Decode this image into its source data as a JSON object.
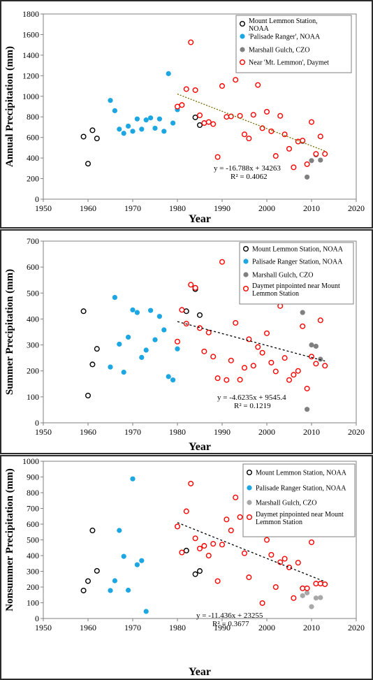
{
  "colors": {
    "mount_lemmon": "#000000",
    "palisade": "#1ca6e2",
    "marshall_dark": "#808080",
    "marshall_light": "#a8a8a8",
    "daymet": "#ff0000",
    "trend": "#000000",
    "trend_annual": "#7a6a00"
  },
  "chart_data": [
    {
      "type": "scatter",
      "title": "",
      "xlabel": "Year",
      "ylabel": "Annual Precipitation (mm)",
      "xlim": [
        1950,
        2020
      ],
      "ylim": [
        0,
        1800
      ],
      "xticks": [
        "1950",
        "1960",
        "1970",
        "1980",
        "1990",
        "2000",
        "2010",
        "2020"
      ],
      "yticks": [
        "0",
        "200",
        "400",
        "600",
        "800",
        "1000",
        "1200",
        "1400",
        "1600",
        "1800"
      ],
      "legend_position": "top-right",
      "equation": "y = -16.788x + 34263",
      "r2": "R² = 0.4062",
      "trend": {
        "x": [
          1980,
          2013
        ],
        "y": [
          1022,
          468
        ]
      },
      "series": [
        {
          "name": "Mount Lemmon Station, NOAA",
          "marker": "open",
          "color": "#000000",
          "x": [
            1959,
            1960,
            1961,
            1962,
            1984,
            1985
          ],
          "y": [
            608,
            345,
            670,
            590,
            795,
            720
          ]
        },
        {
          "name": "'Palisade Ranger', NOAA",
          "marker": "filled",
          "color": "#1ca6e2",
          "x": [
            1965,
            1966,
            1967,
            1968,
            1969,
            1970,
            1971,
            1972,
            1973,
            1974,
            1975,
            1976,
            1977,
            1978,
            1979,
            1980
          ],
          "y": [
            960,
            860,
            680,
            640,
            710,
            660,
            780,
            680,
            770,
            790,
            690,
            780,
            660,
            1220,
            740,
            870
          ]
        },
        {
          "name": "Marshall Gulch, CZO",
          "marker": "filled",
          "color": "#808080",
          "x": [
            2008,
            2009,
            2010,
            2011,
            2012
          ],
          "y": [
            560,
            215,
            375,
            430,
            380
          ]
        },
        {
          "name": "Near 'Mt. Lemmon', Daymet",
          "marker": "open",
          "color": "#ff0000",
          "x": [
            1980,
            1981,
            1982,
            1983,
            1984,
            1985,
            1986,
            1987,
            1988,
            1989,
            1990,
            1991,
            1992,
            1993,
            1994,
            1995,
            1996,
            1997,
            1998,
            1999,
            2000,
            2001,
            2002,
            2003,
            2004,
            2005,
            2006,
            2007,
            2008,
            2009,
            2010,
            2011,
            2012,
            2013
          ],
          "y": [
            900,
            915,
            1070,
            1525,
            1060,
            815,
            740,
            750,
            730,
            410,
            1100,
            800,
            805,
            1160,
            810,
            630,
            590,
            820,
            1110,
            690,
            850,
            660,
            420,
            810,
            630,
            490,
            310,
            560,
            570,
            340,
            750,
            440,
            610,
            440
          ]
        }
      ]
    },
    {
      "type": "scatter",
      "title": "",
      "xlabel": "Year",
      "ylabel": "Summer Precipitation (mm)",
      "xlim": [
        1950,
        2020
      ],
      "ylim": [
        0,
        700
      ],
      "xticks": [
        "1950",
        "1960",
        "1970",
        "1980",
        "1990",
        "2000",
        "2010",
        "2020"
      ],
      "yticks": [
        "0",
        "100",
        "200",
        "300",
        "400",
        "500",
        "600",
        "700"
      ],
      "legend_position": "top-right",
      "equation": "y = -4.6235x + 9545.4",
      "r2": "R² = 0.1219",
      "trend": {
        "x": [
          1980,
          2013
        ],
        "y": [
          390,
          238
        ]
      },
      "series": [
        {
          "name": "Mount Lemmon Station, NOAA",
          "marker": "open",
          "color": "#000000",
          "x": [
            1959,
            1960,
            1961,
            1962,
            1982,
            1984,
            1984,
            1985
          ],
          "y": [
            430,
            105,
            225,
            285,
            430,
            520,
            515,
            415
          ]
        },
        {
          "name": "Palisade Ranger Station, NOAA",
          "marker": "filled",
          "color": "#1ca6e2",
          "x": [
            1965,
            1966,
            1967,
            1968,
            1969,
            1970,
            1971,
            1972,
            1973,
            1974,
            1975,
            1976,
            1977,
            1978,
            1979,
            1980
          ],
          "y": [
            215,
            483,
            303,
            195,
            330,
            435,
            425,
            252,
            280,
            433,
            320,
            410,
            358,
            178,
            165,
            285
          ]
        },
        {
          "name": "Marshall Gulch, CZO",
          "marker": "filled",
          "color": "#808080",
          "x": [
            2008,
            2009,
            2010,
            2011,
            2012
          ],
          "y": [
            425,
            52,
            300,
            295,
            245
          ]
        },
        {
          "name": "Daymet pinpointed near Mount Lemmon Station",
          "marker": "open",
          "color": "#ff0000",
          "x": [
            1980,
            1981,
            1982,
            1983,
            1984,
            1985,
            1986,
            1987,
            1988,
            1989,
            1990,
            1991,
            1992,
            1993,
            1994,
            1995,
            1996,
            1997,
            1998,
            1999,
            2000,
            2001,
            2002,
            2003,
            2004,
            2005,
            2006,
            2007,
            2008,
            2009,
            2010,
            2011,
            2012,
            2013
          ],
          "y": [
            313,
            435,
            382,
            532,
            520,
            365,
            275,
            348,
            255,
            172,
            620,
            165,
            240,
            385,
            166,
            212,
            322,
            220,
            292,
            270,
            345,
            232,
            198,
            450,
            250,
            165,
            185,
            200,
            372,
            132,
            255,
            228,
            395,
            220
          ]
        }
      ]
    },
    {
      "type": "scatter",
      "title": "",
      "xlabel": "Year",
      "ylabel": "Nonsummer Precipitation (mm)",
      "xlim": [
        1950,
        2020
      ],
      "ylim": [
        0,
        1000
      ],
      "xticks": [
        "1950",
        "1960",
        "1970",
        "1980",
        "1990",
        "2000",
        "2010",
        "2020"
      ],
      "yticks": [
        "0",
        "100",
        "200",
        "300",
        "400",
        "500",
        "600",
        "700",
        "800",
        "900",
        "1000"
      ],
      "legend_position": "top-right",
      "equation": "y = -11.436x + 23255",
      "r2": "R² = 0.3677",
      "trend": {
        "x": [
          1980,
          2013
        ],
        "y": [
          610,
          234
        ]
      },
      "series": [
        {
          "name": "Mount Lemmon Station, NOAA",
          "marker": "open",
          "color": "#000000",
          "x": [
            1959,
            1960,
            1961,
            1962,
            1982,
            1984,
            1985
          ],
          "y": [
            178,
            238,
            560,
            303,
            432,
            282,
            302
          ]
        },
        {
          "name": "Palisade Ranger Station, NOAA",
          "marker": "filled",
          "color": "#1ca6e2",
          "x": [
            1965,
            1966,
            1967,
            1968,
            1969,
            1970,
            1971,
            1972,
            1973
          ],
          "y": [
            178,
            240,
            560,
            395,
            180,
            888,
            342,
            368,
            45
          ]
        },
        {
          "name": "Marshall Gulch, CZO",
          "marker": "filled",
          "color": "#a8a8a8",
          "x": [
            2008,
            2009,
            2010,
            2011,
            2012
          ],
          "y": [
            145,
            163,
            75,
            130,
            133
          ]
        },
        {
          "name": "Daymet pinpointed near Mount Lemmon Station",
          "marker": "open",
          "color": "#ff0000",
          "x": [
            1980,
            1981,
            1982,
            1983,
            1984,
            1985,
            1986,
            1987,
            1988,
            1989,
            1990,
            1991,
            1992,
            1993,
            1994,
            1995,
            1996,
            1997,
            1998,
            1999,
            2000,
            2001,
            2002,
            2003,
            2004,
            2005,
            2006,
            2007,
            2008,
            2009,
            2010,
            2011,
            2012,
            2013
          ],
          "y": [
            585,
            420,
            682,
            858,
            510,
            445,
            462,
            400,
            475,
            238,
            470,
            630,
            560,
            770,
            645,
            415,
            262,
            600,
            608,
            98,
            500,
            405,
            200,
            358,
            380,
            325,
            130,
            355,
            192,
            192,
            485,
            222,
            222,
            218
          ]
        }
      ]
    }
  ]
}
